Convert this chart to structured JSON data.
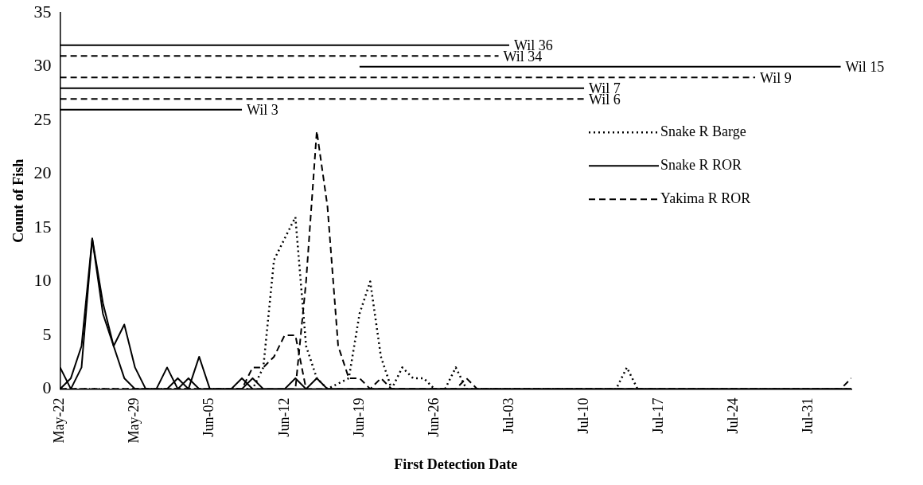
{
  "chart_data": {
    "type": "line",
    "xlabel": "First Detection Date",
    "ylabel": "Count of Fish",
    "xlim": [
      "--05-22",
      "--08-04"
    ],
    "xticks": [
      {
        "value": "--05-22",
        "label": "May-22"
      },
      {
        "value": "--05-29",
        "label": "May-29"
      },
      {
        "value": "--06-05",
        "label": "Jun-05"
      },
      {
        "value": "--06-12",
        "label": "Jun-12"
      },
      {
        "value": "--06-19",
        "label": "Jun-19"
      },
      {
        "value": "--06-26",
        "label": "Jun-26"
      },
      {
        "value": "--07-03",
        "label": "Jul-03"
      },
      {
        "value": "--07-10",
        "label": "Jul-10"
      },
      {
        "value": "--07-17",
        "label": "Jul-17"
      },
      {
        "value": "--07-24",
        "label": "Jul-24"
      },
      {
        "value": "--07-31",
        "label": "Jul-31"
      }
    ],
    "ylim": [
      0,
      35
    ],
    "yticks": [
      0,
      5,
      10,
      15,
      20,
      25,
      30,
      35
    ],
    "grid": false,
    "legend": "right",
    "marker": "none",
    "series": [
      {
        "name": "Snake R Barge",
        "color": "#000000",
        "line_style": "dotted",
        "x": [
          "--05-22",
          "--06-09",
          "--06-10",
          "--06-11",
          "--06-12",
          "--06-13",
          "--06-14",
          "--06-15",
          "--06-16",
          "--06-18",
          "--06-19",
          "--06-20",
          "--06-21",
          "--06-22",
          "--06-23",
          "--06-24",
          "--06-25",
          "--06-26",
          "--06-27",
          "--06-28",
          "--06-29",
          "--07-13",
          "--07-14",
          "--07-15",
          "--08-04"
        ],
        "values": [
          0,
          0,
          2,
          12,
          14,
          16,
          4,
          1,
          0,
          1,
          7,
          10,
          3,
          0,
          2,
          1,
          1,
          0,
          0,
          2,
          0,
          0,
          2,
          0,
          0
        ]
      },
      {
        "name": "Snake R ROR",
        "color": "#000000",
        "line_style": "solid",
        "x": [
          "--05-22",
          "--05-23",
          "--05-24",
          "--05-25",
          "--05-26",
          "--05-27",
          "--05-28",
          "--05-29",
          "--05-30",
          "--05-31",
          "--06-01",
          "--06-02",
          "--06-03",
          "--06-04",
          "--06-07",
          "--06-08",
          "--06-09",
          "--06-12",
          "--06-13",
          "--06-14",
          "--08-04"
        ],
        "values": [
          2,
          0,
          2,
          14,
          8,
          4,
          6,
          2,
          0,
          0,
          2,
          0,
          1,
          0,
          0,
          1,
          0,
          0,
          1,
          0,
          0
        ]
      },
      {
        "name": "Yakima R ROR",
        "color": "#000000",
        "line_style": "dashed",
        "x": [
          "--05-22",
          "--06-13",
          "--06-14",
          "--06-15",
          "--06-16",
          "--06-17",
          "--06-18",
          "--06-19",
          "--06-20",
          "--06-21",
          "--06-22",
          "--06-28",
          "--06-29",
          "--06-30",
          "--08-03",
          "--08-04"
        ],
        "values": [
          0,
          0,
          10,
          24,
          17,
          4,
          1,
          1,
          0,
          1,
          0,
          0,
          1,
          0,
          0,
          1
        ]
      },
      {
        "color": "#000000",
        "line_style": "solid",
        "x": [
          "--05-22",
          "--05-23",
          "--05-24",
          "--05-25",
          "--05-26",
          "--05-27",
          "--05-28",
          "--05-29",
          "--06-01",
          "--06-02",
          "--06-03",
          "--06-04",
          "--06-05",
          "--06-08",
          "--06-09",
          "--06-10",
          "--06-14",
          "--06-15",
          "--06-16",
          "--08-04"
        ],
        "values": [
          0,
          1,
          4,
          14,
          7,
          4,
          1,
          0,
          0,
          1,
          0,
          3,
          0,
          0,
          1,
          0,
          0,
          1,
          0,
          0
        ]
      },
      {
        "color": "#000000",
        "line_style": "dashed",
        "x": [
          "--05-22",
          "--06-08",
          "--06-09",
          "--06-10",
          "--06-11",
          "--06-12",
          "--06-13",
          "--06-14",
          "--08-04"
        ],
        "values": [
          0,
          0,
          2,
          2,
          3,
          5,
          5,
          0,
          0
        ]
      },
      {
        "name": "Wil 36",
        "color": "#000000",
        "line_style": "solid",
        "x": [
          "--05-22",
          "--07-03"
        ],
        "values": [
          32,
          32
        ]
      },
      {
        "name": "Wil 34",
        "color": "#000000",
        "line_style": "dashed",
        "x": [
          "--05-22",
          "--07-02"
        ],
        "values": [
          31,
          31
        ]
      },
      {
        "name": "Wil 15",
        "color": "#000000",
        "line_style": "solid",
        "x": [
          "--06-19",
          "--08-03"
        ],
        "values": [
          30,
          30
        ]
      },
      {
        "name": "Wil 9",
        "color": "#000000",
        "line_style": "dashed",
        "x": [
          "--05-22",
          "--07-26"
        ],
        "values": [
          29,
          29
        ]
      },
      {
        "name": "Wil 7",
        "color": "#000000",
        "line_style": "solid",
        "x": [
          "--05-22",
          "--07-10"
        ],
        "values": [
          28,
          28
        ]
      },
      {
        "name": "Wil 6",
        "color": "#000000",
        "line_style": "dashed",
        "x": [
          "--05-22",
          "--07-10"
        ],
        "values": [
          27,
          27
        ]
      },
      {
        "name": "Wil 3",
        "color": "#000000",
        "line_style": "solid",
        "x": [
          "--05-22",
          "--06-08"
        ],
        "values": [
          26,
          26
        ]
      }
    ]
  }
}
